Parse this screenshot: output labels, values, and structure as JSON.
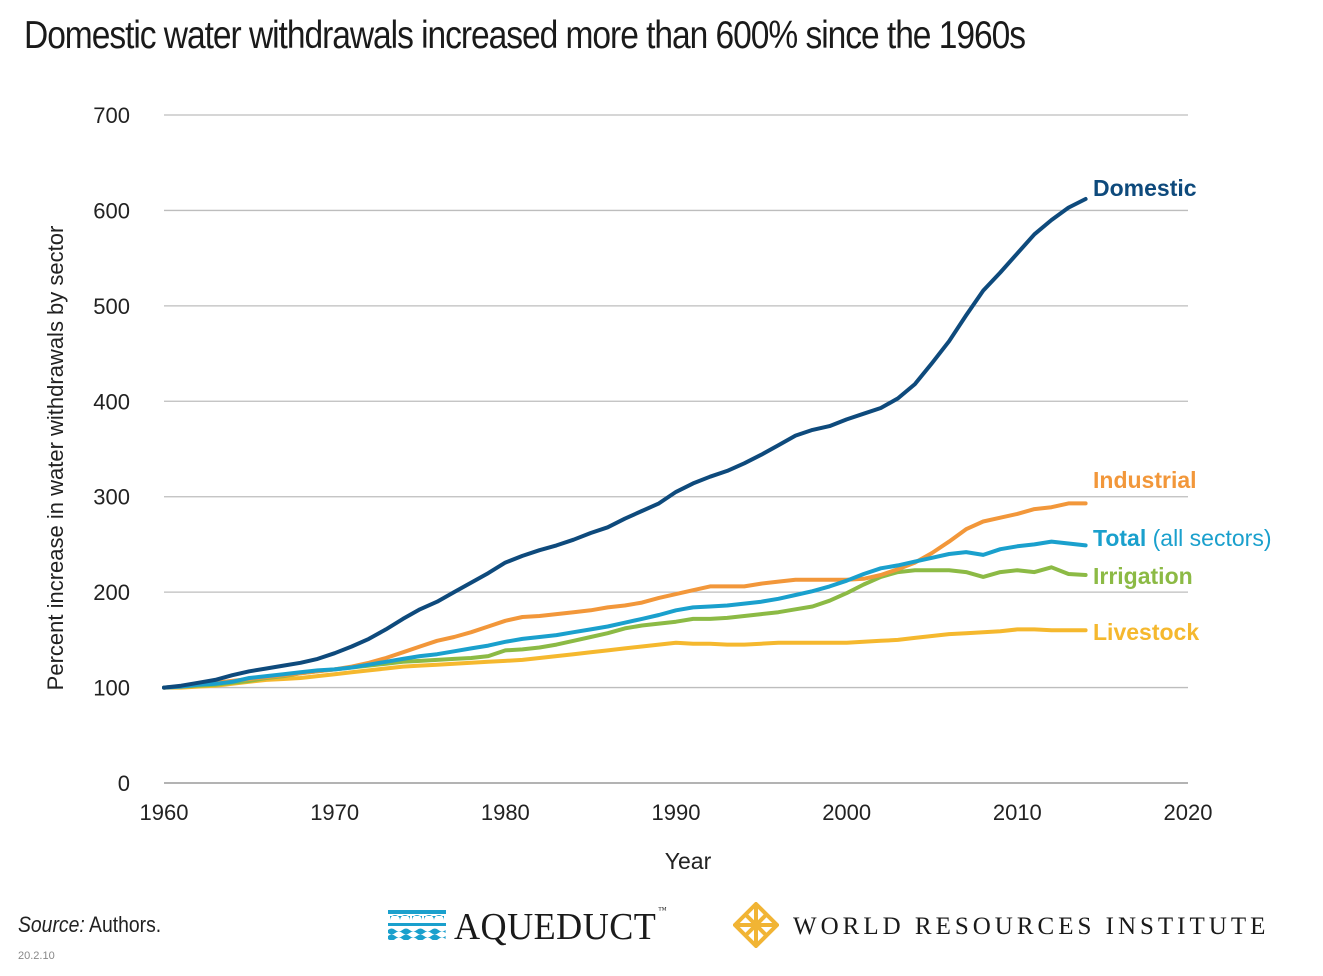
{
  "title": "Domestic water withdrawals increased more than 600% since the 1960s",
  "footer": {
    "source_label": "Source:",
    "source_text": " Authors.",
    "code": "20.2.10"
  },
  "logos": {
    "aqueduct": {
      "name": "AQUEDUCT",
      "tm": "™",
      "icon": "aqueduct-arches-icon",
      "color": "#1aa0cd"
    },
    "wri": {
      "name": "WORLD RESOURCES INSTITUTE",
      "icon": "wri-diamond-lattice-icon",
      "color": "#f1b434"
    }
  },
  "chart_data": {
    "type": "line",
    "xlabel": "Year",
    "ylabel": "Percent increase in water withdrawals by sector",
    "xlim": [
      1960,
      2020
    ],
    "ylim": [
      0,
      700
    ],
    "x_ticks": [
      1960,
      1970,
      1980,
      1990,
      2000,
      2010,
      2020
    ],
    "y_ticks": [
      0,
      100,
      200,
      300,
      400,
      500,
      600,
      700
    ],
    "grid": "horizontal",
    "legend": "inline labels at right end of each line",
    "x": [
      1960,
      1961,
      1962,
      1963,
      1964,
      1965,
      1966,
      1967,
      1968,
      1969,
      1970,
      1971,
      1972,
      1973,
      1974,
      1975,
      1976,
      1977,
      1978,
      1979,
      1980,
      1981,
      1982,
      1983,
      1984,
      1985,
      1986,
      1987,
      1988,
      1989,
      1990,
      1991,
      1992,
      1993,
      1994,
      1995,
      1996,
      1997,
      1998,
      1999,
      2000,
      2001,
      2002,
      2003,
      2004,
      2005,
      2006,
      2007,
      2008,
      2009,
      2010,
      2011,
      2012,
      2013,
      2014
    ],
    "series": [
      {
        "name": "Domestic",
        "label_main": "Domestic",
        "label_suffix": "",
        "color": "#0e4a7c",
        "values": [
          100,
          102,
          105,
          108,
          113,
          117,
          120,
          123,
          126,
          130,
          136,
          143,
          151,
          161,
          172,
          182,
          190,
          200,
          210,
          220,
          231,
          238,
          244,
          249,
          255,
          262,
          268,
          277,
          285,
          293,
          305,
          314,
          321,
          327,
          335,
          344,
          354,
          364,
          370,
          374,
          381,
          387,
          393,
          403,
          418,
          440,
          463,
          490,
          516,
          535,
          555,
          575,
          590,
          603,
          612
        ]
      },
      {
        "name": "Industrial",
        "label_main": "Industrial",
        "label_suffix": "",
        "color": "#f2973a",
        "values": [
          100,
          101,
          103,
          105,
          107,
          109,
          111,
          113,
          115,
          117,
          119,
          122,
          126,
          131,
          137,
          143,
          149,
          153,
          158,
          164,
          170,
          174,
          175,
          177,
          179,
          181,
          184,
          186,
          189,
          194,
          198,
          202,
          206,
          206,
          206,
          209,
          211,
          213,
          213,
          213,
          213,
          214,
          218,
          224,
          231,
          241,
          253,
          266,
          274,
          278,
          282,
          287,
          289,
          293,
          293
        ]
      },
      {
        "name": "Total",
        "label_main": "Total",
        "label_suffix": " (all sectors)",
        "color": "#1aa0cd",
        "values": [
          100,
          101,
          103,
          104,
          106,
          110,
          112,
          114,
          116,
          118,
          119,
          121,
          124,
          127,
          130,
          133,
          135,
          138,
          141,
          144,
          148,
          151,
          153,
          155,
          158,
          161,
          164,
          168,
          172,
          176,
          181,
          184,
          185,
          186,
          188,
          190,
          193,
          197,
          201,
          206,
          212,
          219,
          225,
          228,
          232,
          236,
          240,
          242,
          239,
          245,
          248,
          250,
          253,
          251,
          249
        ]
      },
      {
        "name": "Irrigation",
        "label_main": "Irrigation",
        "label_suffix": "",
        "color": "#8cba45",
        "values": [
          100,
          101,
          102,
          103,
          105,
          107,
          110,
          112,
          115,
          117,
          119,
          121,
          123,
          125,
          127,
          128,
          129,
          130,
          131,
          133,
          139,
          140,
          142,
          145,
          149,
          153,
          157,
          162,
          165,
          167,
          169,
          172,
          172,
          173,
          175,
          177,
          179,
          182,
          185,
          191,
          199,
          208,
          216,
          221,
          223,
          223,
          223,
          221,
          216,
          221,
          223,
          221,
          226,
          219,
          218
        ]
      },
      {
        "name": "Livestock",
        "label_main": "Livestock",
        "label_suffix": "",
        "color": "#f5b82e",
        "values": [
          100,
          100,
          101,
          102,
          104,
          106,
          108,
          109,
          110,
          112,
          114,
          116,
          118,
          120,
          122,
          123,
          124,
          125,
          126,
          127,
          128,
          129,
          131,
          133,
          135,
          137,
          139,
          141,
          143,
          145,
          147,
          146,
          146,
          145,
          145,
          146,
          147,
          147,
          147,
          147,
          147,
          148,
          149,
          150,
          152,
          154,
          156,
          157,
          158,
          159,
          161,
          161,
          160,
          160,
          160
        ]
      }
    ]
  }
}
